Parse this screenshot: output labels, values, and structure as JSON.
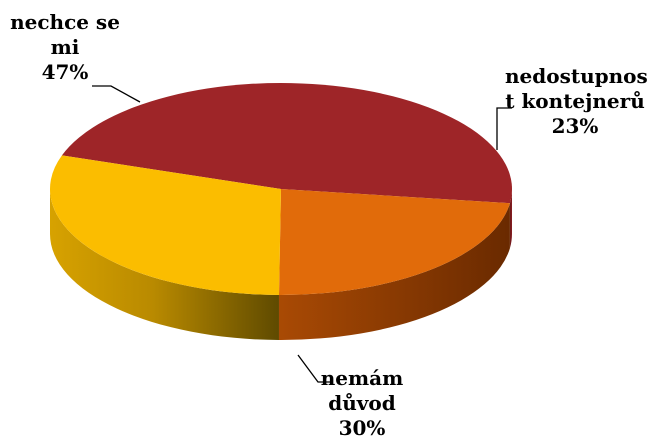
{
  "chart_data": {
    "type": "pie",
    "title": "",
    "categories": [
      "nechce se mi",
      "nedostupnost kontejnerů",
      "nemám důvod"
    ],
    "values": [
      47,
      23,
      30
    ],
    "unit": "%",
    "labels": [
      {
        "lines": [
          "nechce se",
          "mi",
          "47%"
        ]
      },
      {
        "lines": [
          "nedostupnos",
          "t kontejnerů",
          "23%"
        ]
      },
      {
        "lines": [
          "nemám",
          "důvod",
          "30%"
        ]
      }
    ],
    "colors": [
      "#9e2528",
      "#e16b0a",
      "#fbbd00"
    ],
    "style": "3d-pie",
    "legend": "none"
  }
}
